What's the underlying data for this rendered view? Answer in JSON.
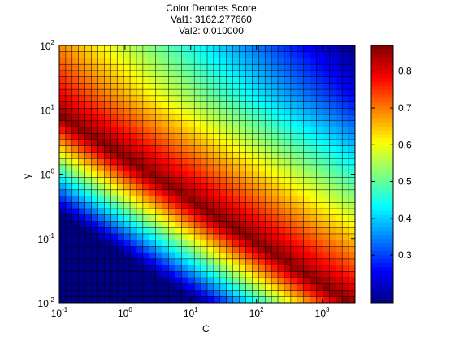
{
  "chart_data": {
    "type": "heatmap",
    "title_lines": [
      "Color Denotes Score",
      "Val1: 3162.277660",
      "Val2: 0.010000"
    ],
    "xlabel": "C",
    "ylabel": "γ",
    "x_scale": "log",
    "y_scale": "log",
    "xlim": [
      0.1,
      3162.27766
    ],
    "ylim": [
      0.01,
      100
    ],
    "x_ticks": [
      {
        "base": "10",
        "exp": "-1",
        "value": 0.1
      },
      {
        "base": "10",
        "exp": "0",
        "value": 1
      },
      {
        "base": "10",
        "exp": "1",
        "value": 10
      },
      {
        "base": "10",
        "exp": "2",
        "value": 100
      },
      {
        "base": "10",
        "exp": "3",
        "value": 1000
      }
    ],
    "y_ticks": [
      {
        "base": "10",
        "exp": "-2",
        "value": 0.01
      },
      {
        "base": "10",
        "exp": "-1",
        "value": 0.1
      },
      {
        "base": "10",
        "exp": "0",
        "value": 1
      },
      {
        "base": "10",
        "exp": "1",
        "value": 10
      },
      {
        "base": "10",
        "exp": "2",
        "value": 100
      }
    ],
    "grid_cols": 46,
    "grid_rows": 41,
    "colormap": "jet",
    "color_range": [
      0.17,
      0.87
    ],
    "colorbar_ticks": [
      "0.3",
      "0.4",
      "0.5",
      "0.6",
      "0.7",
      "0.8"
    ],
    "colorbar_tick_values": [
      0.3,
      0.4,
      0.5,
      0.6,
      0.7,
      0.8
    ],
    "cell_line_color": "#000000"
  }
}
